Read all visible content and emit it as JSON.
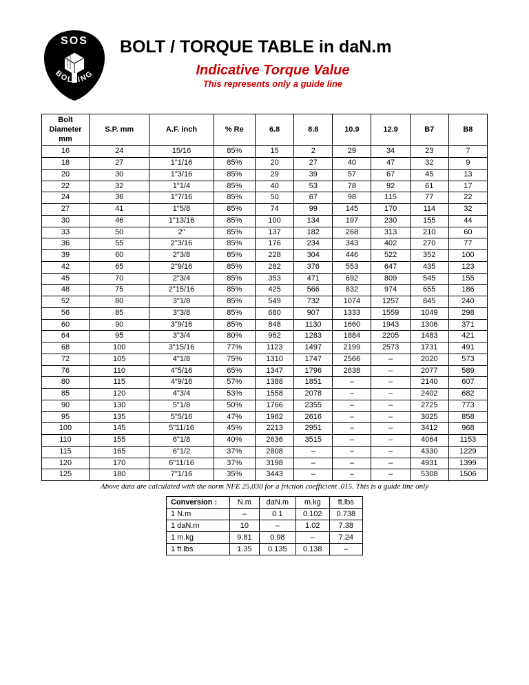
{
  "header": {
    "logo_top": "SOS",
    "logo_bottom": "BOLTING",
    "title": "BOLT / TORQUE TABLE in daN.m",
    "subtitle": "Indicative Torque Value",
    "subnote": "This represents only a guide line"
  },
  "colors": {
    "accent_red": "#d10000",
    "text": "#000000",
    "border": "#000000",
    "background": "#ffffff"
  },
  "torque_table": {
    "columns": [
      "Bolt\nDiameter\nmm",
      "S.P. mm",
      "A.F. inch",
      "% Re",
      "6.8",
      "8.8",
      "10.9",
      "12.9",
      "B7",
      "B8"
    ],
    "rows": [
      [
        "16",
        "24",
        "15/16",
        "85%",
        "15",
        "2",
        "29",
        "34",
        "23",
        "7"
      ],
      [
        "18",
        "27",
        "1\"1/16",
        "85%",
        "20",
        "27",
        "40",
        "47",
        "32",
        "9"
      ],
      [
        "20",
        "30",
        "1\"3/16",
        "85%",
        "29",
        "39",
        "57",
        "67",
        "45",
        "13"
      ],
      [
        "22",
        "32",
        "1\"1/4",
        "85%",
        "40",
        "53",
        "78",
        "92",
        "61",
        "17"
      ],
      [
        "24",
        "36",
        "1\"7/16",
        "85%",
        "50",
        "67",
        "98",
        "115",
        "77",
        "22"
      ],
      [
        "27",
        "41",
        "1\"5/8",
        "85%",
        "74",
        "99",
        "145",
        "170",
        "114",
        "32"
      ],
      [
        "30",
        "46",
        "1\"13/16",
        "85%",
        "100",
        "134",
        "197",
        "230",
        "155",
        "44"
      ],
      [
        "33",
        "50",
        "2\"",
        "85%",
        "137",
        "182",
        "268",
        "313",
        "210",
        "60"
      ],
      [
        "36",
        "55",
        "2\"3/16",
        "85%",
        "176",
        "234",
        "343",
        "402",
        "270",
        "77"
      ],
      [
        "39",
        "60",
        "2\"3/8",
        "85%",
        "228",
        "304",
        "446",
        "522",
        "352",
        "100"
      ],
      [
        "42",
        "65",
        "2\"9/16",
        "85%",
        "282",
        "376",
        "553",
        "647",
        "435",
        "123"
      ],
      [
        "45",
        "70",
        "2\"3/4",
        "85%",
        "353",
        "471",
        "692",
        "809",
        "545",
        "155"
      ],
      [
        "48",
        "75",
        "2\"15/16",
        "85%",
        "425",
        "566",
        "832",
        "974",
        "655",
        "186"
      ],
      [
        "52",
        "80",
        "3\"1/8",
        "85%",
        "549",
        "732",
        "1074",
        "1257",
        "845",
        "240"
      ],
      [
        "56",
        "85",
        "3\"3/8",
        "85%",
        "680",
        "907",
        "1333",
        "1559",
        "1049",
        "298"
      ],
      [
        "60",
        "90",
        "3\"9/16",
        "85%",
        "848",
        "1130",
        "1660",
        "1943",
        "1306",
        "371"
      ],
      [
        "64",
        "95",
        "3\"3/4",
        "80%",
        "962",
        "1283",
        "1884",
        "2205",
        "1483",
        "421"
      ],
      [
        "68",
        "100",
        "3\"15/16",
        "77%",
        "1123",
        "1497",
        "2199",
        "2573",
        "1731",
        "491"
      ],
      [
        "72",
        "105",
        "4\"1/8",
        "75%",
        "1310",
        "1747",
        "2566",
        "–",
        "2020",
        "573"
      ],
      [
        "76",
        "110",
        "4\"5/16",
        "65%",
        "1347",
        "1796",
        "2638",
        "–",
        "2077",
        "589"
      ],
      [
        "80",
        "115",
        "4\"9/16",
        "57%",
        "1388",
        "1851",
        "–",
        "–",
        "2140",
        "607"
      ],
      [
        "85",
        "120",
        "4\"3/4",
        "53%",
        "1558",
        "2078",
        "–",
        "–",
        "2402",
        "682"
      ],
      [
        "90",
        "130",
        "5\"1/8",
        "50%",
        "1766",
        "2355",
        "–",
        "–",
        "2725",
        "773"
      ],
      [
        "95",
        "135",
        "5\"5/16",
        "47%",
        "1962",
        "2616",
        "–",
        "–",
        "3025",
        "858"
      ],
      [
        "100",
        "145",
        "5\"11/16",
        "45%",
        "2213",
        "2951",
        "–",
        "–",
        "3412",
        "968"
      ],
      [
        "110",
        "155",
        "6\"1/8",
        "40%",
        "2636",
        "3515",
        "–",
        "–",
        "4064",
        "1153"
      ],
      [
        "115",
        "165",
        "6\"1/2",
        "37%",
        "2808",
        "–",
        "–",
        "–",
        "4330",
        "1229"
      ],
      [
        "120",
        "170",
        "6\"11/16",
        "37%",
        "3198",
        "–",
        "–",
        "–",
        "4931",
        "1399"
      ],
      [
        "125",
        "180",
        "7\"1/16",
        "35%",
        "3443",
        "–",
        "–",
        "–",
        "5308",
        "1506"
      ]
    ]
  },
  "footnote": "Above data are calculated with the norm NFE 25.030 for a friction coefficient .015. This is a guide line only",
  "conversion_table": {
    "header": [
      "Conversion :",
      "N.m",
      "daN.m",
      "m.kg",
      "ft.lbs"
    ],
    "rows": [
      [
        "1 N.m",
        "–",
        "0.1",
        "0.102",
        "0.738"
      ],
      [
        "1 daN.m",
        "10",
        "–",
        "1.02",
        "7.38"
      ],
      [
        "1 m.kg",
        "9.81",
        "0.98",
        "–",
        "7.24"
      ],
      [
        "1 ft.lbs",
        "1.35",
        "0.135",
        "0.138",
        "–"
      ]
    ]
  }
}
